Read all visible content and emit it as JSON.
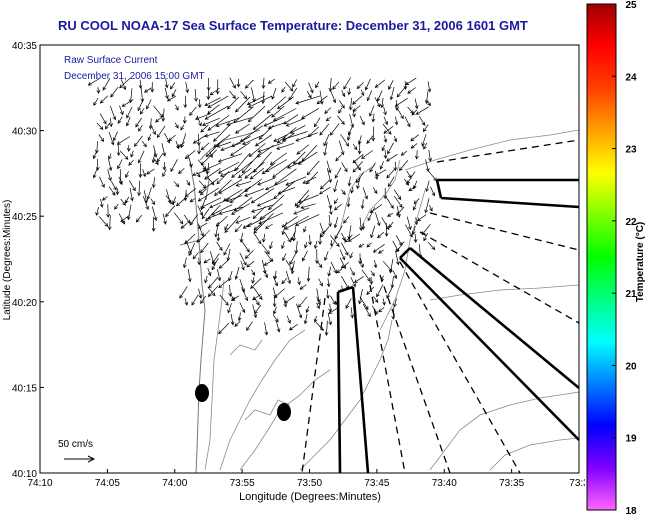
{
  "title": "RU COOL  NOAA-17  Sea Surface Temperature:  December 31, 2006 1601 GMT",
  "annotation": {
    "line1": "Raw Surface Current",
    "line2": "December 31, 2006 15:00 GMT",
    "color": "#1a1aa0"
  },
  "scale": {
    "label": "50 cm/s"
  },
  "axes": {
    "xlabel": "Longitude (Degrees:Minutes)",
    "ylabel": "Latitude (Degrees:Minutes)",
    "xticks": [
      "74:10",
      "74:05",
      "74:00",
      "73:55",
      "73:50",
      "73:45",
      "73:40",
      "73:35",
      "73:3"
    ],
    "yticks": [
      "40:35",
      "40:30",
      "40:25",
      "40:20",
      "40:15",
      "40:10"
    ]
  },
  "colorbar": {
    "label": "Temperature (°C)",
    "min": 18,
    "max": 25,
    "ticks": [
      "25",
      "24",
      "23",
      "22",
      "21",
      "20",
      "19",
      "18"
    ],
    "colors": [
      "#ff66ff",
      "#8000ff",
      "#0000ff",
      "#0080ff",
      "#00ffff",
      "#00ff80",
      "#00ff00",
      "#80ff00",
      "#ffff00",
      "#ffa000",
      "#ff4000",
      "#ff0000",
      "#a00000"
    ]
  },
  "colors": {
    "frame": "#000000",
    "contour": "#8a8a8a",
    "vector": "#000000"
  }
}
